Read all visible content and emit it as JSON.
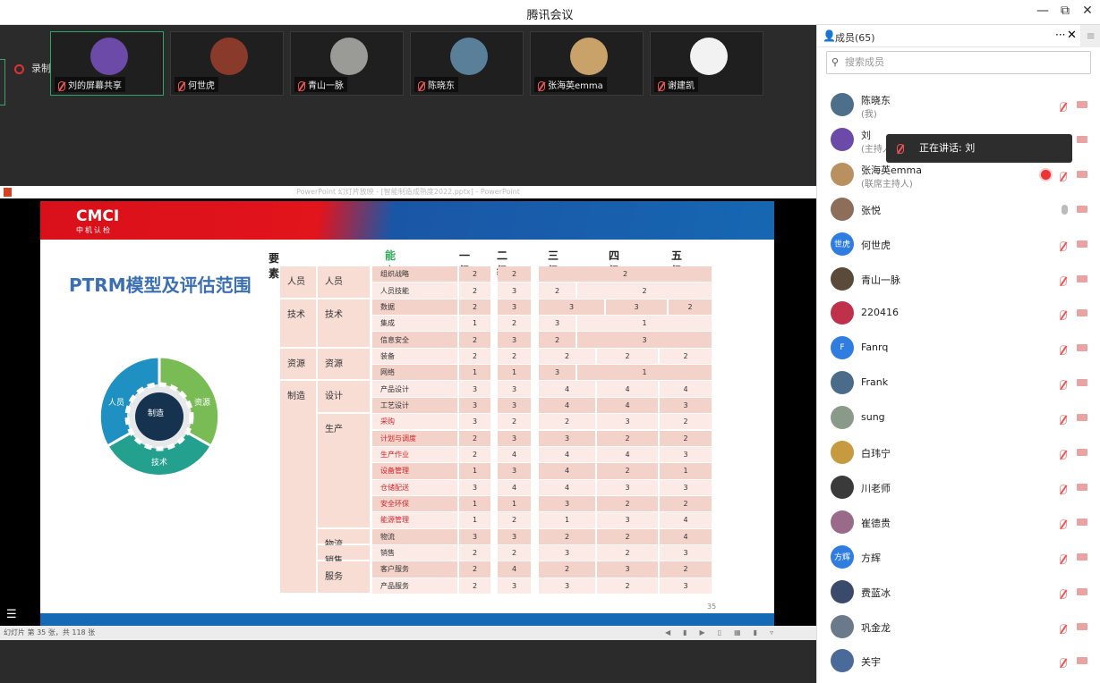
{
  "window": {
    "title": "腾讯会议",
    "minimize": "—",
    "maximize": "⧉",
    "close": "✕"
  },
  "recording": "录制中",
  "videos": [
    {
      "name": "刘的屏幕共享",
      "color": "#6b4aa8",
      "active": true
    },
    {
      "name": "何世虎",
      "color": "#8a3a2a"
    },
    {
      "name": "青山一脉",
      "color": "#9a9a96"
    },
    {
      "name": "陈晓东",
      "color": "#5a7f99"
    },
    {
      "name": "张海英emma",
      "color": "#c9a26a"
    },
    {
      "name": "谢建凯",
      "color": "#f2f2f2"
    }
  ],
  "ppt": {
    "window_title": "PowerPoint 幻灯片放映 - [智能制造成熟度2022.pptx] - PowerPoint",
    "status": "幻灯片 第 35 张，共 118 张",
    "slide": {
      "logo": "CMCI",
      "logo_sub": "中机认检",
      "title": "PTRM模型及评估范围",
      "page": "35",
      "wheel": {
        "center": "制造",
        "segments": [
          "人员",
          "资源",
          "技术"
        ]
      },
      "headers": {
        "element": "要素",
        "subdomain": "能力子域",
        "levels": [
          "一级",
          "二级",
          "三级",
          "四级",
          "五级"
        ]
      },
      "groups1": [
        {
          "label": "人员",
          "rows": 2
        },
        {
          "label": "技术",
          "rows": 3
        },
        {
          "label": "资源",
          "rows": 2
        },
        {
          "label": "制造",
          "rows": 13
        }
      ],
      "groups2": [
        {
          "label": "人员",
          "rows": 2
        },
        {
          "label": "技术",
          "rows": 3
        },
        {
          "label": "资源",
          "rows": 2
        },
        {
          "label": "设计",
          "rows": 2
        },
        {
          "label": "生产",
          "rows": 7
        },
        {
          "label": "物流",
          "rows": 1
        },
        {
          "label": "销售",
          "rows": 1
        },
        {
          "label": "服务",
          "rows": 2
        }
      ],
      "rows": [
        {
          "sub": "组织战略",
          "l1": "2",
          "l2": "2",
          "hi": [
            "2"
          ]
        },
        {
          "sub": "人员技能",
          "l1": "2",
          "l2": "3",
          "hi": [
            "2",
            "2"
          ]
        },
        {
          "sub": "数据",
          "l1": "2",
          "l2": "3",
          "hi": [
            "3",
            "3",
            "2"
          ]
        },
        {
          "sub": "集成",
          "l1": "1",
          "l2": "2",
          "hi": [
            "3",
            "1"
          ]
        },
        {
          "sub": "信息安全",
          "l1": "2",
          "l2": "3",
          "hi": [
            "2",
            "3"
          ]
        },
        {
          "sub": "装备",
          "l1": "2",
          "l2": "2",
          "hi": [
            "2",
            "2",
            "2"
          ]
        },
        {
          "sub": "网络",
          "l1": "1",
          "l2": "1",
          "hi": [
            "3",
            "1"
          ]
        },
        {
          "sub": "产品设计",
          "l1": "3",
          "l2": "3",
          "hi": [
            "4",
            "4",
            "4"
          ]
        },
        {
          "sub": "工艺设计",
          "l1": "3",
          "l2": "3",
          "hi": [
            "4",
            "4",
            "3"
          ]
        },
        {
          "sub": "采购",
          "l1": "3",
          "l2": "2",
          "hi": [
            "2",
            "3",
            "2"
          ],
          "red": true
        },
        {
          "sub": "计划与调度",
          "l1": "2",
          "l2": "3",
          "hi": [
            "3",
            "2",
            "2"
          ],
          "red": true
        },
        {
          "sub": "生产作业",
          "l1": "2",
          "l2": "4",
          "hi": [
            "4",
            "4",
            "3"
          ],
          "red": true
        },
        {
          "sub": "设备管理",
          "l1": "1",
          "l2": "3",
          "hi": [
            "4",
            "2",
            "1"
          ],
          "red": true
        },
        {
          "sub": "仓储配送",
          "l1": "3",
          "l2": "4",
          "hi": [
            "4",
            "3",
            "3"
          ],
          "red": true
        },
        {
          "sub": "安全环保",
          "l1": "1",
          "l2": "1",
          "hi": [
            "3",
            "2",
            "2"
          ],
          "red": true
        },
        {
          "sub": "能源管理",
          "l1": "1",
          "l2": "2",
          "hi": [
            "1",
            "3",
            "4"
          ],
          "red": true
        },
        {
          "sub": "物流",
          "l1": "3",
          "l2": "3",
          "hi": [
            "2",
            "2",
            "4"
          ]
        },
        {
          "sub": "销售",
          "l1": "2",
          "l2": "2",
          "hi": [
            "3",
            "2",
            "3"
          ]
        },
        {
          "sub": "客户服务",
          "l1": "2",
          "l2": "4",
          "hi": [
            "2",
            "3",
            "2"
          ]
        },
        {
          "sub": "产品服务",
          "l1": "2",
          "l2": "3",
          "hi": [
            "3",
            "2",
            "3"
          ]
        }
      ]
    }
  },
  "panel": {
    "title": "成员(65)",
    "more": "···",
    "close": "✕",
    "menu": "≡",
    "search_placeholder": "搜索成员",
    "tooltip": "正在讲话: 刘",
    "members": [
      {
        "name": "陈晓东",
        "role": "(我)",
        "color": "#4d6f8a"
      },
      {
        "name": "刘",
        "role": "(主持人)",
        "color": "#6b4aa8"
      },
      {
        "name": "张海英emma",
        "role": "(联席主持人)",
        "color": "#b99160",
        "rec": true
      },
      {
        "name": "张悦",
        "color": "#8d6e5a",
        "mic_on": true
      },
      {
        "name": "何世虎",
        "avatar": "世虎",
        "color": "#2f7de1"
      },
      {
        "name": "青山一脉",
        "color": "#5a4a3a"
      },
      {
        "name": "220416",
        "color": "#c0304a"
      },
      {
        "name": "Fanrq",
        "avatar": "F",
        "color": "#2f7de1"
      },
      {
        "name": "Frank",
        "color": "#4a6b8a"
      },
      {
        "name": "sung",
        "color": "#8a9a88"
      },
      {
        "name": "白玮宁",
        "color": "#c89a40"
      },
      {
        "name": "川老师",
        "color": "#3a3a3a"
      },
      {
        "name": "崔德贵",
        "color": "#9a6a8a"
      },
      {
        "name": "方辉",
        "avatar": "方辉",
        "color": "#2f7de1"
      },
      {
        "name": "费蓝冰",
        "color": "#3a4a6a"
      },
      {
        "name": "巩金龙",
        "color": "#6a7a8a"
      },
      {
        "name": "关宇",
        "color": "#4a6a9a"
      }
    ]
  }
}
